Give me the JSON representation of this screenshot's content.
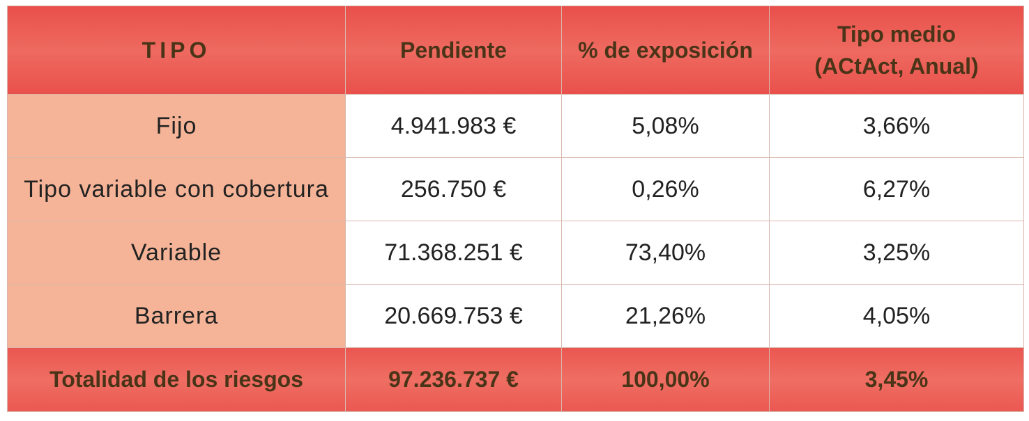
{
  "table": {
    "header": [
      "TIPO",
      "Pendiente",
      "% de exposición",
      "Tipo medio (ACtAct, Anual)"
    ],
    "rows": [
      [
        "Fijo",
        "4.941.983 €",
        "5,08%",
        "3,66%"
      ],
      [
        "Tipo variable con cobertura",
        "256.750 €",
        "0,26%",
        "6,27%"
      ],
      [
        "Variable",
        "71.368.251 €",
        "73,40%",
        "3,25%"
      ],
      [
        "Barrera",
        "20.669.753 €",
        "21,26%",
        "4,05%"
      ]
    ],
    "total": [
      "Totalidad de los riesgos",
      "97.236.737 €",
      "100,00%",
      "3,45%"
    ]
  }
}
